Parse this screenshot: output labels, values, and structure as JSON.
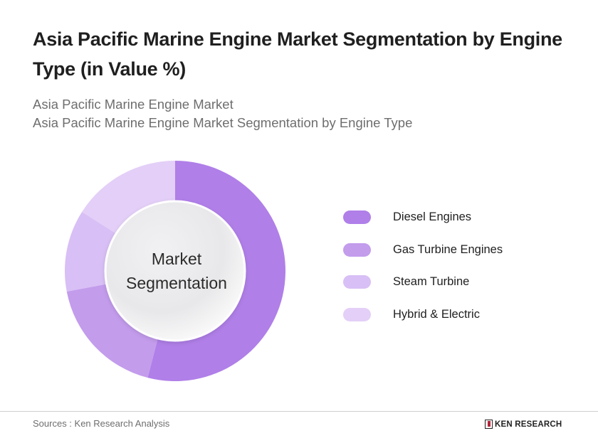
{
  "header": {
    "title": "Asia Pacific Marine Engine Market Segmentation by Engine Type (in Value %)",
    "subtitle_line1": "Asia Pacific Marine Engine Market",
    "subtitle_line2": "Asia Pacific Marine Engine Market Segmentation by Engine Type"
  },
  "chart_center": {
    "line1": "Market",
    "line2": "Segmentation"
  },
  "legend": {
    "items": [
      {
        "label": "Diesel Engines",
        "color": "#b07fe8"
      },
      {
        "label": "Gas Turbine Engines",
        "color": "#c39cec"
      },
      {
        "label": "Steam Turbine",
        "color": "#d8bff5"
      },
      {
        "label": "Hybrid & Electric",
        "color": "#e3cff7"
      }
    ]
  },
  "footer": {
    "sources": "Sources : Ken Research Analysis",
    "brand": "KEN RESEARCH"
  },
  "chart_data": {
    "type": "pie",
    "variant": "donut",
    "title": "Asia Pacific Marine Engine Market Segmentation by Engine Type (in Value %)",
    "center_label": "Market Segmentation",
    "categories": [
      "Diesel Engines",
      "Gas Turbine Engines",
      "Steam Turbine",
      "Hybrid & Electric"
    ],
    "values": [
      54,
      18,
      12,
      16
    ],
    "unit": "%",
    "colors": [
      "#b07fe8",
      "#c39cec",
      "#d8bff5",
      "#e3cff7"
    ],
    "start_angle": "12 o'clock",
    "direction": "clockwise",
    "legend_position": "right"
  }
}
